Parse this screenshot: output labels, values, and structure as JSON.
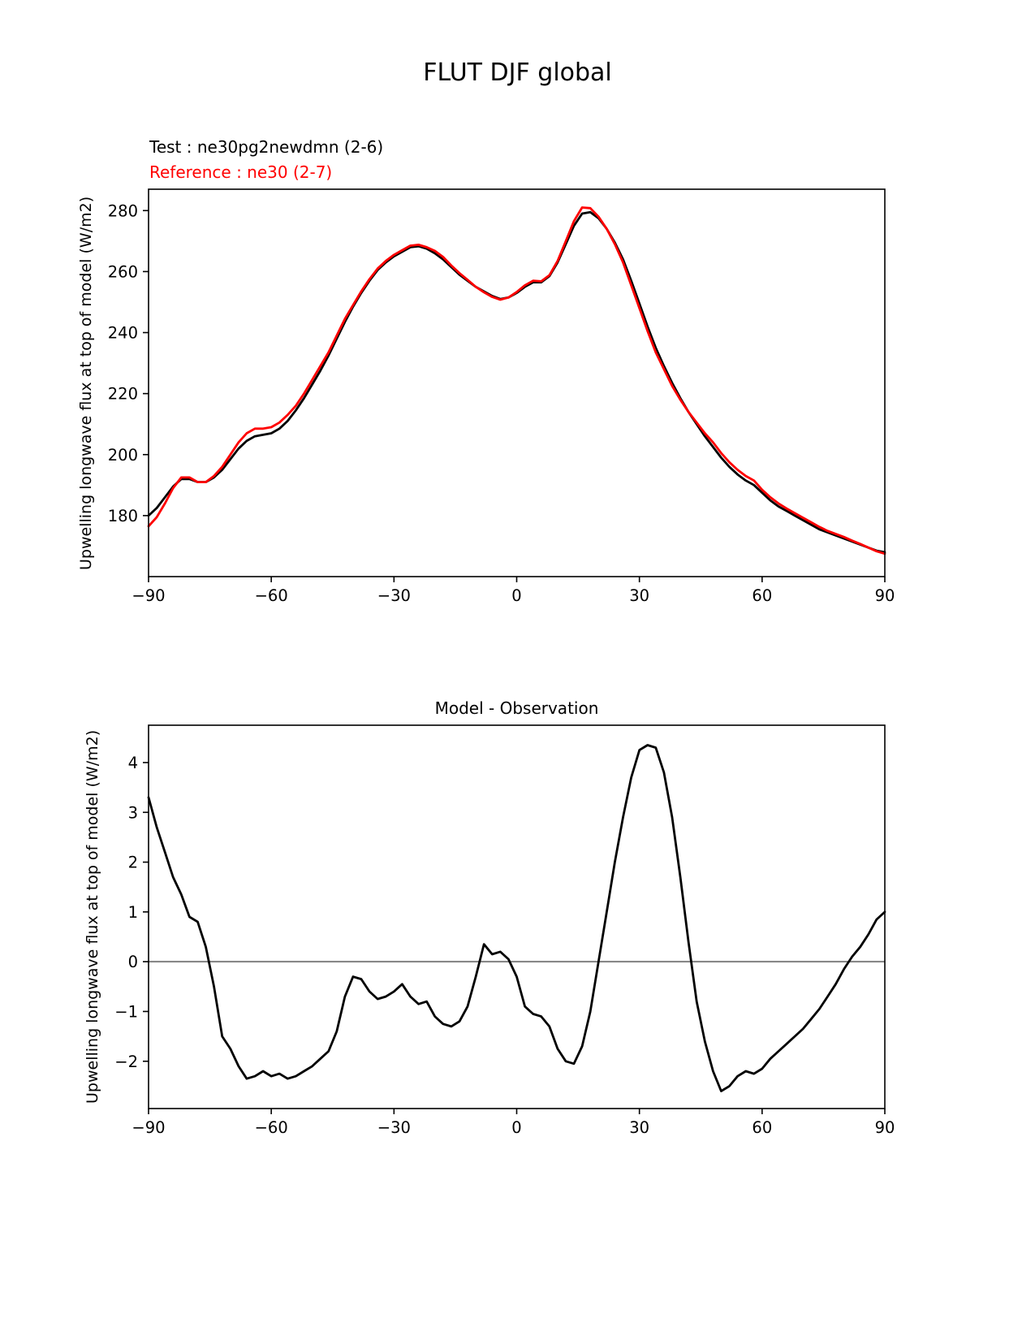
{
  "page": {
    "title": "FLUT DJF global"
  },
  "chart_data": [
    {
      "name": "flut-latitude-profile",
      "type": "line",
      "title": "",
      "ylabel": "Upwelling longwave flux at top of model (W/m2)",
      "xlabel": "",
      "legend": [
        {
          "label": "Test : ne30pg2newdmn (2-6)",
          "color": "#000000"
        },
        {
          "label": "Reference : ne30 (2-7)",
          "color": "#ff0000"
        }
      ],
      "legend_position": "top-left",
      "grid": false,
      "xlim": [
        -90,
        90
      ],
      "ylim": [
        160,
        287
      ],
      "xticks": [
        {
          "v": -90,
          "label": "−90"
        },
        {
          "v": -60,
          "label": "−60"
        },
        {
          "v": -30,
          "label": "−30"
        },
        {
          "v": 0,
          "label": "0"
        },
        {
          "v": 30,
          "label": "30"
        },
        {
          "v": 60,
          "label": "60"
        },
        {
          "v": 90,
          "label": "90"
        }
      ],
      "yticks": [
        {
          "v": 180,
          "label": "180"
        },
        {
          "v": 200,
          "label": "200"
        },
        {
          "v": 220,
          "label": "220"
        },
        {
          "v": 240,
          "label": "240"
        },
        {
          "v": 260,
          "label": "260"
        },
        {
          "v": 280,
          "label": "280"
        }
      ],
      "zero_line": false,
      "x": [
        -90,
        -88,
        -86,
        -84,
        -82,
        -80,
        -78,
        -76,
        -74,
        -72,
        -70,
        -68,
        -66,
        -64,
        -62,
        -60,
        -58,
        -56,
        -54,
        -52,
        -50,
        -48,
        -46,
        -44,
        -42,
        -40,
        -38,
        -36,
        -34,
        -32,
        -30,
        -28,
        -26,
        -24,
        -22,
        -20,
        -18,
        -16,
        -14,
        -12,
        -10,
        -8,
        -6,
        -4,
        -2,
        0,
        2,
        4,
        6,
        8,
        10,
        12,
        14,
        16,
        18,
        20,
        22,
        24,
        26,
        28,
        30,
        32,
        34,
        36,
        38,
        40,
        42,
        44,
        46,
        48,
        50,
        52,
        54,
        56,
        58,
        60,
        62,
        64,
        66,
        68,
        70,
        72,
        74,
        76,
        78,
        80,
        82,
        84,
        86,
        88,
        90
      ],
      "series": [
        {
          "name": "test",
          "color": "#000000",
          "values": [
            180,
            182.5,
            186,
            189.5,
            192,
            192,
            191,
            191,
            192.5,
            195,
            198.5,
            202,
            204.5,
            206,
            206.5,
            207,
            208.5,
            211,
            214.5,
            218.5,
            223,
            227.5,
            232.5,
            238,
            243.5,
            248.5,
            253,
            257,
            260.5,
            263,
            265,
            266.5,
            268,
            268.3,
            267.5,
            266,
            264,
            261.5,
            259,
            257,
            255,
            253.5,
            252,
            251,
            251.5,
            253,
            255,
            256.5,
            256.5,
            258.5,
            263,
            269,
            275,
            279,
            279.5,
            277.5,
            274,
            269.5,
            264,
            257,
            249.5,
            242,
            235,
            229,
            223.5,
            218.5,
            214,
            210,
            206,
            202.5,
            199,
            196,
            193.5,
            191.5,
            190,
            187.5,
            185,
            183,
            181.5,
            180,
            178.5,
            177,
            175.5,
            174.5,
            173.5,
            172.5,
            171.5,
            170.5,
            169.5,
            168.5,
            168
          ]
        },
        {
          "name": "reference",
          "color": "#ff0000",
          "values": [
            176.5,
            179.5,
            184,
            189,
            192.5,
            192.5,
            191,
            191,
            193,
            196,
            200,
            204,
            207,
            208.5,
            208.5,
            209,
            210.5,
            213,
            216,
            220,
            224.5,
            229,
            233.5,
            239,
            244.5,
            249,
            253.5,
            257.5,
            261,
            263.5,
            265.5,
            267,
            268.5,
            268.8,
            268,
            266.8,
            264.8,
            262,
            259.5,
            257.3,
            255,
            253.2,
            251.7,
            250.8,
            251.5,
            253.3,
            255.5,
            257,
            256.8,
            258.8,
            263.5,
            270,
            276.5,
            281,
            280.8,
            278,
            274,
            269,
            263,
            255.5,
            248,
            240.5,
            233.5,
            228,
            222.5,
            218,
            214,
            210.5,
            207,
            204,
            200.5,
            197.5,
            195,
            193,
            191.5,
            188.5,
            186,
            184,
            182.3,
            180.8,
            179.3,
            177.8,
            176.3,
            175,
            174,
            173,
            171.8,
            170.7,
            169.5,
            168.3,
            167.5
          ]
        }
      ]
    },
    {
      "name": "model-minus-observation",
      "type": "line",
      "title": "Model - Observation",
      "ylabel": "Upwelling longwave flux at top of model (W/m2)",
      "xlabel": "",
      "grid": false,
      "xlim": [
        -90,
        90
      ],
      "ylim": [
        -2.95,
        4.75
      ],
      "xticks": [
        {
          "v": -90,
          "label": "−90"
        },
        {
          "v": -60,
          "label": "−60"
        },
        {
          "v": -30,
          "label": "−30"
        },
        {
          "v": 0,
          "label": "0"
        },
        {
          "v": 30,
          "label": "30"
        },
        {
          "v": 60,
          "label": "60"
        },
        {
          "v": 90,
          "label": "90"
        }
      ],
      "yticks": [
        {
          "v": -2,
          "label": "−2"
        },
        {
          "v": -1,
          "label": "−1"
        },
        {
          "v": 0,
          "label": "0"
        },
        {
          "v": 1,
          "label": "1"
        },
        {
          "v": 2,
          "label": "2"
        },
        {
          "v": 3,
          "label": "3"
        },
        {
          "v": 4,
          "label": "4"
        }
      ],
      "zero_line": true,
      "zero_line_color": "#808080",
      "x": [
        -90,
        -88,
        -86,
        -84,
        -82,
        -80,
        -78,
        -76,
        -74,
        -72,
        -70,
        -68,
        -66,
        -64,
        -62,
        -60,
        -58,
        -56,
        -54,
        -52,
        -50,
        -48,
        -46,
        -44,
        -42,
        -40,
        -38,
        -36,
        -34,
        -32,
        -30,
        -28,
        -26,
        -24,
        -22,
        -20,
        -18,
        -16,
        -14,
        -12,
        -10,
        -8,
        -6,
        -4,
        -2,
        0,
        2,
        4,
        6,
        8,
        10,
        12,
        14,
        16,
        18,
        20,
        22,
        24,
        26,
        28,
        30,
        32,
        34,
        36,
        38,
        40,
        42,
        44,
        46,
        48,
        50,
        52,
        54,
        56,
        58,
        60,
        62,
        64,
        66,
        68,
        70,
        72,
        74,
        76,
        78,
        80,
        82,
        84,
        86,
        88,
        90
      ],
      "series": [
        {
          "name": "difference",
          "color": "#000000",
          "values": [
            3.3,
            2.7,
            2.2,
            1.7,
            1.35,
            0.9,
            0.8,
            0.3,
            -0.5,
            -1.5,
            -1.75,
            -2.1,
            -2.35,
            -2.3,
            -2.2,
            -2.3,
            -2.25,
            -2.35,
            -2.3,
            -2.2,
            -2.1,
            -1.95,
            -1.8,
            -1.4,
            -0.7,
            -0.3,
            -0.35,
            -0.6,
            -0.75,
            -0.7,
            -0.6,
            -0.45,
            -0.7,
            -0.85,
            -0.8,
            -1.1,
            -1.25,
            -1.3,
            -1.2,
            -0.9,
            -0.3,
            0.35,
            0.15,
            0.2,
            0.05,
            -0.3,
            -0.9,
            -1.05,
            -1.1,
            -1.3,
            -1.75,
            -2.0,
            -2.05,
            -1.7,
            -1.0,
            0.0,
            1.0,
            2.0,
            2.9,
            3.7,
            4.25,
            4.35,
            4.3,
            3.8,
            2.9,
            1.7,
            0.4,
            -0.8,
            -1.6,
            -2.2,
            -2.6,
            -2.5,
            -2.3,
            -2.2,
            -2.25,
            -2.15,
            -1.95,
            -1.8,
            -1.65,
            -1.5,
            -1.35,
            -1.15,
            -0.95,
            -0.7,
            -0.45,
            -0.15,
            0.1,
            0.3,
            0.55,
            0.85,
            1.0
          ]
        }
      ]
    }
  ]
}
